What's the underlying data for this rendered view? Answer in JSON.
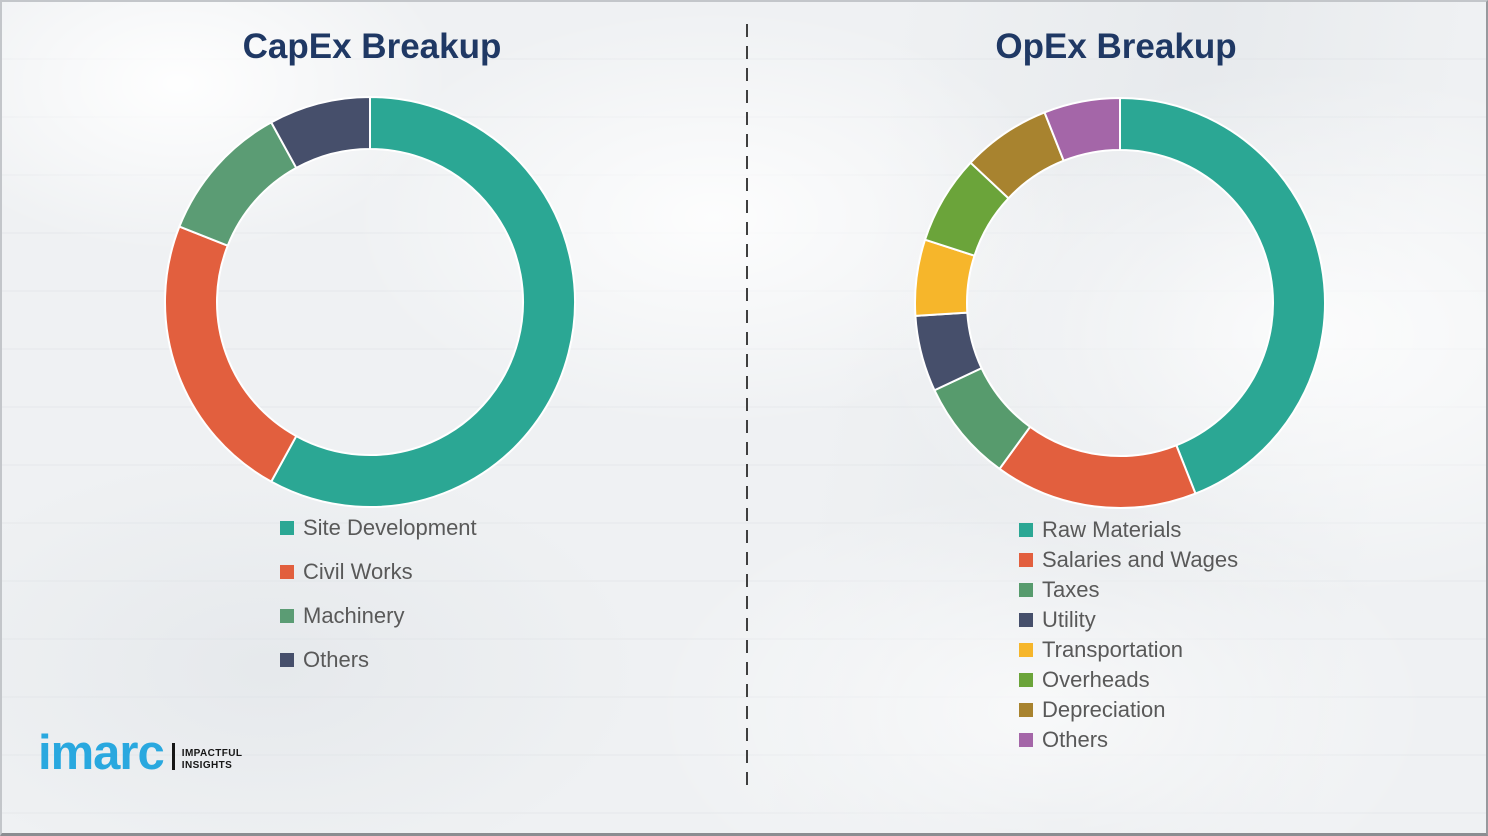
{
  "theme": {
    "background_color": "#EFF1F3",
    "title_color": "#1F3864",
    "legend_text_color": "#595959",
    "divider_color": "#3F3F3F",
    "separator_color": "#FFFFFF"
  },
  "chart_data": [
    {
      "type": "pie",
      "subtype": "donut",
      "title": "CapEx Breakup",
      "categories": [
        "Site Development",
        "Civil Works",
        "Machinery",
        "Others"
      ],
      "values": [
        58,
        23,
        11,
        8
      ],
      "values_unit": "percent",
      "values_note": "estimated from arc angles; no numeric labels shown in image",
      "colors": [
        "#2BA794",
        "#E25F3E",
        "#5B9C74",
        "#464F6B"
      ],
      "start_angle_deg": 0,
      "direction": "clockwise",
      "legend_position": "below-left",
      "data_labels": false
    },
    {
      "type": "pie",
      "subtype": "donut",
      "title": "OpEx Breakup",
      "categories": [
        "Raw Materials",
        "Salaries and Wages",
        "Taxes",
        "Utility",
        "Transportation",
        "Overheads",
        "Depreciation",
        "Others"
      ],
      "values": [
        44,
        16,
        8,
        6,
        6,
        7,
        7,
        6
      ],
      "values_unit": "percent",
      "values_note": "estimated from arc angles; no numeric labels shown in image",
      "colors": [
        "#2BA794",
        "#E25F3E",
        "#579B6D",
        "#464F6B",
        "#F6B62B",
        "#6BA43A",
        "#A8832F",
        "#A466A8"
      ],
      "start_angle_deg": 0,
      "direction": "clockwise",
      "legend_position": "below-left",
      "data_labels": false
    }
  ],
  "logo": {
    "brand": "imarc",
    "brand_color": "#29A8DF",
    "tagline": [
      "IMPACTFUL",
      "INSIGHTS"
    ]
  }
}
